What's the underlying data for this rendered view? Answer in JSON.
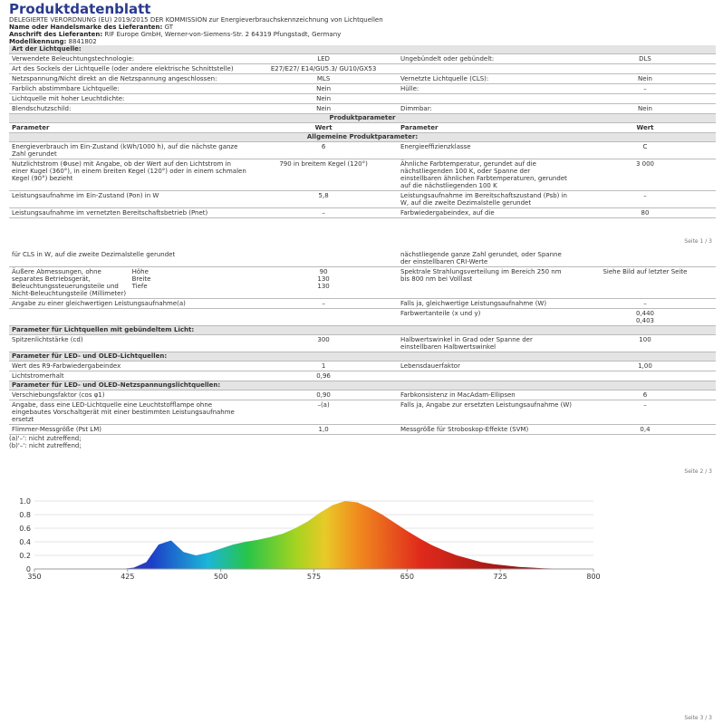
{
  "pages": [
    {
      "title": "Produktdatenblatt",
      "intro": [
        {
          "text": "DELEGIERTE VERORDNUNG (EU) 2019/2015 DER KOMMISSION zur Energieverbrauchskennzeichnung von Lichtquellen"
        },
        {
          "label": "Name oder Handelsmarke des Lieferanten:",
          "value": "GT"
        },
        {
          "label": "Anschrift des Lieferanten:",
          "value": "RIF Europe GmbH, Werner-von-Siemens-Str. 2 64319 Pfungstadt, Germany"
        },
        {
          "label": "Modellkennung:",
          "value": "8841802"
        }
      ],
      "rows": [
        {
          "heading": "Art der Lichtquelle:"
        },
        {
          "cells": [
            "Verwendete Beleuchtungstechnologie:",
            "LED",
            "Ungebündelt oder gebündelt:",
            "DLS"
          ]
        },
        {
          "cells": [
            "Art des Sockels der Lichtquelle (oder andere elektrische Schnittstelle)",
            "E27/E27/ E14/GU5.3/ GU10/GX53",
            null,
            null
          ]
        },
        {
          "cells": [
            "Netzspannung/Nicht direkt an die Netzspannung angeschlossen:",
            "MLS",
            "Vernetzte Lichtquelle (CLS):",
            "Nein"
          ]
        },
        {
          "cells": [
            "Farblich abstimmbare Lichtquelle:",
            "Nein",
            "Hülle:",
            "–"
          ]
        },
        {
          "cells": [
            "Lichtquelle mit hoher Leuchtdichte:",
            "Nein",
            null,
            null
          ]
        },
        {
          "cells": [
            "Blendschutzschild:",
            "Nein",
            "Dimmbar:",
            "Nein"
          ]
        },
        {
          "heading": "Produktparameter",
          "center": true
        },
        {
          "header": [
            "Parameter",
            "Wert",
            "Parameter",
            "Wert"
          ]
        },
        {
          "heading": "Allgemeine Produktparameter:",
          "center": true
        },
        {
          "cells": [
            "Energieverbrauch im Ein-Zustand (kWh/1000 h), auf die nächste ganze Zahl gerundet",
            "6",
            "Energieeffizienzklasse",
            "C"
          ]
        },
        {
          "cells": [
            "Nutzlichtstrom (Φuse) mit Angabe, ob der Wert auf den Lichtstrom in einer Kugel (360°), in einem breiten Kegel (120°) oder in einem schmalen Kegel (90°) bezieht",
            "790 in breitem Kegel (120°)",
            "Ähnliche Farbtemperatur, gerundet auf die nächstliegenden 100 K, oder Spanne der einstellbaren ähnlichen Farbtemperaturen, gerundet auf die nächstliegenden 100 K",
            "3 000"
          ]
        },
        {
          "cells": [
            "Leistungsaufnahme im Ein-Zustand (Pon) in W",
            "5,8",
            "Leistungsaufnahme im Bereitschaftszustand (Psb) in W, auf die zweite Dezimalstelle gerundet",
            "–"
          ]
        },
        {
          "cells": [
            "Leistungsaufnahme im vernetzten Bereitschaftsbetrieb (Pnet)",
            "–",
            "Farbwiedergabeindex, auf die",
            "80"
          ]
        }
      ],
      "page_number": "Seite 1 / 3"
    },
    {
      "rows": [
        {
          "cells": [
            "für CLS in W, auf die zweite Dezimalstelle gerundet",
            null,
            "nächstliegende ganze Zahl gerundet, oder Spanne der einstellbaren CRI-Werte",
            null
          ]
        },
        {
          "cells": [
            "Äußere Abmessungen, ohne separates Betriebsgerät, Beleuchtungssteuerungsteile und Nicht-Beleuchtungsteile (Millimeter)",
            [
              "Höhe",
              "Breite",
              "Tiefe"
            ],
            [
              "90",
              "130",
              "130"
            ],
            "Spektrale Strahlungsverteilung im Bereich 250 nm bis 800 nm bei Volllast",
            "Siehe Bild auf letzter Seite"
          ]
        },
        {
          "cells": [
            "Angabe zu einer gleichwertigen Leistungsaufnahme(a)",
            "–",
            "Falls ja, gleichwertige Leistungsaufnahme (W)",
            "–"
          ]
        },
        {
          "cells": [
            null,
            null,
            "Farbwertanteile (x und y)",
            [
              "0,440",
              "0,403"
            ]
          ]
        },
        {
          "heading": "Parameter für Lichtquellen mit gebündeltem Licht:"
        },
        {
          "cells": [
            "Spitzenlichtstärke (cd)",
            "300",
            "Halbwertswinkel in Grad oder Spanne der einstellbaren Halbwertswinkel",
            "100"
          ]
        },
        {
          "heading": "Parameter für LED- und OLED-Lichtquellen:"
        },
        {
          "cells": [
            "Wert des R9-Farbwiedergabeindex",
            "1",
            "Lebensdauerfaktor",
            "1,00"
          ]
        },
        {
          "cells": [
            "Lichtstromerhalt",
            "0,96",
            null,
            null
          ]
        },
        {
          "heading": "Parameter für LED- und OLED-Netzspannungslichtquellen:"
        },
        {
          "cells": [
            "Verschiebungsfaktor (cos φ1)",
            "0,90",
            "Farbkonsistenz in MacAdam-Ellipsen",
            "6"
          ]
        },
        {
          "cells": [
            "Angabe, dass eine LED-Lichtquelle eine Leuchtstofflampe ohne eingebautes Vorschaltgerät mit einer bestimmten Leistungsaufnahme ersetzt",
            "–(a)",
            "Falls ja, Angabe zur ersetzten Leistungsaufnahme (W)",
            "–"
          ]
        },
        {
          "cells": [
            "Flimmer-Messgröße (Pst LM)",
            "1,0",
            "Messgröße für Stroboskop-Effekte (SVM)",
            "0,4"
          ]
        }
      ],
      "footnotes": [
        "(a)'–': nicht zutreffend;",
        "(b)'–': nicht zutreffend;"
      ],
      "page_number": "Seite 2 / 3"
    },
    {
      "spectrum": {
        "type": "area",
        "x": [
          420,
          430,
          440,
          450,
          460,
          470,
          480,
          490,
          500,
          510,
          520,
          530,
          540,
          550,
          560,
          570,
          580,
          590,
          600,
          610,
          620,
          630,
          640,
          650,
          660,
          670,
          680,
          690,
          700,
          710,
          720,
          730,
          740,
          750,
          760,
          770,
          780
        ],
        "values": [
          0,
          0.02,
          0.1,
          0.36,
          0.42,
          0.25,
          0.2,
          0.24,
          0.3,
          0.36,
          0.4,
          0.43,
          0.47,
          0.52,
          0.6,
          0.7,
          0.83,
          0.94,
          1.0,
          0.98,
          0.9,
          0.8,
          0.68,
          0.56,
          0.45,
          0.35,
          0.27,
          0.2,
          0.15,
          0.1,
          0.07,
          0.05,
          0.03,
          0.02,
          0.01,
          0.005,
          0
        ],
        "xlim": [
          350,
          800
        ],
        "xticks": [
          350,
          425,
          500,
          575,
          650,
          725,
          800
        ],
        "ylim": [
          0,
          1.0
        ],
        "yticks": [
          0,
          0.2,
          0.4,
          0.6,
          0.8,
          {
            "value": 1.0,
            "label": "1.0"
          }
        ]
      },
      "page_number": "Seite 3 / 3"
    }
  ]
}
